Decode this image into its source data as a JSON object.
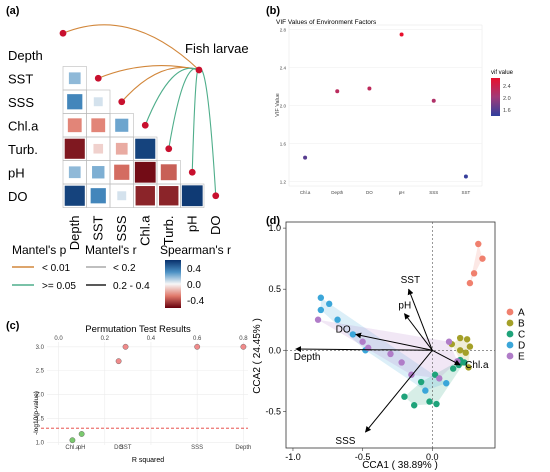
{
  "panel_labels": {
    "a": "(a)",
    "b": "(b)",
    "c": "(c)",
    "d": "(d)"
  },
  "chart_data": [
    {
      "type": "heatmap",
      "panel": "a",
      "variables": [
        "Depth",
        "SST",
        "SSS",
        "Chl.a",
        "Turb.",
        "pH",
        "DO"
      ],
      "fish_label": "Fish larvae",
      "cells": [
        {
          "row": 1,
          "col": 0,
          "r": 0.3
        },
        {
          "row": 2,
          "col": 0,
          "r": 0.55
        },
        {
          "row": 2,
          "col": 1,
          "r": 0.1
        },
        {
          "row": 3,
          "col": 0,
          "r": -0.45
        },
        {
          "row": 3,
          "col": 1,
          "r": -0.45
        },
        {
          "row": 3,
          "col": 2,
          "r": 0.4
        },
        {
          "row": 4,
          "col": 0,
          "r": -0.9
        },
        {
          "row": 4,
          "col": 1,
          "r": -0.15
        },
        {
          "row": 4,
          "col": 2,
          "r": -0.3
        },
        {
          "row": 4,
          "col": 3,
          "r": 0.9
        },
        {
          "row": 5,
          "col": 0,
          "r": 0.3
        },
        {
          "row": 5,
          "col": 1,
          "r": 0.35
        },
        {
          "row": 5,
          "col": 2,
          "r": -0.55
        },
        {
          "row": 5,
          "col": 3,
          "r": -0.95
        },
        {
          "row": 5,
          "col": 4,
          "r": -0.6
        },
        {
          "row": 6,
          "col": 0,
          "r": 0.9
        },
        {
          "row": 6,
          "col": 1,
          "r": 0.55
        },
        {
          "row": 6,
          "col": 2,
          "r": 0.1
        },
        {
          "row": 6,
          "col": 3,
          "r": -0.85
        },
        {
          "row": 6,
          "col": 4,
          "r": -0.85
        },
        {
          "row": 6,
          "col": 5,
          "r": 0.95
        }
      ],
      "mantel_links": [
        {
          "target": "Depth",
          "p": "< 0.01"
        },
        {
          "target": "SST",
          "p": "< 0.01"
        },
        {
          "target": "SSS",
          "p": "< 0.01"
        },
        {
          "target": "Chl.a",
          "p": ">= 0.05"
        },
        {
          "target": "Turb.",
          "p": ">= 0.05"
        },
        {
          "target": "pH",
          "p": ">= 0.05"
        },
        {
          "target": "DO",
          "p": ">= 0.05"
        }
      ],
      "legend": {
        "mantel_p_title": "Mantel's p",
        "mantel_p_items": [
          {
            "label": "< 0.01",
            "color": "#d2873b"
          },
          {
            "label": ">= 0.05",
            "color": "#4fae8b"
          }
        ],
        "mantel_r_title": "Mantel's r",
        "mantel_r_items": [
          {
            "label": "< 0.2"
          },
          {
            "label": "0.2 - 0.4"
          }
        ],
        "spearman_title": "Spearman's r",
        "spearman_ticks": [
          "0.4",
          "0.0",
          "-0.4"
        ]
      }
    },
    {
      "type": "scatter",
      "panel": "b",
      "title": "VIF Values of Environment Factors",
      "ylabel": "VIF Value",
      "categories": [
        "Chl.a",
        "Depth",
        "DO",
        "pH",
        "SSS",
        "SST"
      ],
      "values": [
        1.45,
        2.15,
        2.18,
        2.75,
        2.05,
        1.25
      ],
      "ylim": [
        1.15,
        2.85
      ],
      "yticks": [
        "1.2",
        "1.6",
        "2.0",
        "2.4",
        "2.8"
      ],
      "legend_title": "vif value",
      "legend_ticks": [
        "2.4",
        "2.0",
        "1.6"
      ]
    },
    {
      "type": "scatter",
      "panel": "c",
      "title": "Permutation Test Results",
      "xlabel": "R squared",
      "ylabel": "-log10(p-value)",
      "xticks": [
        "0.0",
        "0.2",
        "0.4",
        "0.6",
        "0.8"
      ],
      "yticks": [
        "1.0",
        "1.5",
        "2.0",
        "2.5",
        "3.0"
      ],
      "xlim": [
        -0.05,
        0.82
      ],
      "ylim": [
        0.95,
        3.1
      ],
      "threshold": 1.3,
      "points": [
        {
          "label": "Chl.a",
          "x": 0.06,
          "y": 1.05,
          "color": "#7bc96f"
        },
        {
          "label": "pH",
          "x": 0.1,
          "y": 1.18,
          "color": "#7bc96f"
        },
        {
          "label": "DO",
          "x": 0.26,
          "y": 2.7,
          "color": "#f08a8a"
        },
        {
          "label": "SST",
          "x": 0.29,
          "y": 3.0,
          "color": "#f08a8a"
        },
        {
          "label": "SSS",
          "x": 0.6,
          "y": 3.0,
          "color": "#f08a8a"
        },
        {
          "label": "Depth",
          "x": 0.8,
          "y": 3.0,
          "color": "#f08a8a"
        }
      ]
    },
    {
      "type": "scatter",
      "panel": "d",
      "xlabel": "CCA1 ( 38.89% )",
      "ylabel": "CCA2 ( 24.45% )",
      "xticks": [
        -1.0,
        -0.5,
        0.0
      ],
      "yticks": [
        -0.5,
        0.0,
        0.5,
        1.0
      ],
      "xlim": [
        -1.05,
        0.45
      ],
      "ylim": [
        -0.8,
        1.05
      ],
      "arrows": [
        {
          "label": "SST",
          "x": -0.17,
          "y": 0.5
        },
        {
          "label": "pH",
          "x": -0.2,
          "y": 0.3
        },
        {
          "label": "DO",
          "x": -0.55,
          "y": 0.13
        },
        {
          "label": "Depth",
          "x": -0.98,
          "y": 0.01
        },
        {
          "label": "Chl.a",
          "x": 0.2,
          "y": -0.12
        },
        {
          "label": "SSS",
          "x": -0.48,
          "y": -0.67
        }
      ],
      "legend": [
        "A",
        "B",
        "C",
        "D",
        "E"
      ],
      "colors": {
        "A": "#f0806e",
        "B": "#a4a028",
        "C": "#1fa37a",
        "D": "#3ba6d9",
        "E": "#b07cc8"
      },
      "points": [
        {
          "g": "A",
          "x": 0.33,
          "y": 0.87
        },
        {
          "g": "A",
          "x": 0.36,
          "y": 0.75
        },
        {
          "g": "A",
          "x": 0.3,
          "y": 0.63
        },
        {
          "g": "A",
          "x": 0.27,
          "y": 0.55
        },
        {
          "g": "B",
          "x": 0.2,
          "y": 0.1
        },
        {
          "g": "B",
          "x": 0.25,
          "y": 0.09
        },
        {
          "g": "B",
          "x": 0.14,
          "y": 0.05
        },
        {
          "g": "B",
          "x": 0.2,
          "y": 0.0
        },
        {
          "g": "B",
          "x": 0.24,
          "y": -0.02
        },
        {
          "g": "B",
          "x": 0.27,
          "y": 0.03
        },
        {
          "g": "B",
          "x": 0.21,
          "y": -0.1
        },
        {
          "g": "B",
          "x": 0.26,
          "y": -0.14
        },
        {
          "g": "C",
          "x": 0.15,
          "y": -0.15
        },
        {
          "g": "C",
          "x": 0.19,
          "y": -0.12
        },
        {
          "g": "C",
          "x": 0.23,
          "y": -0.1
        },
        {
          "g": "C",
          "x": 0.2,
          "y": -0.08
        },
        {
          "g": "C",
          "x": 0.02,
          "y": -0.2
        },
        {
          "g": "C",
          "x": -0.08,
          "y": -0.26
        },
        {
          "g": "C",
          "x": -0.13,
          "y": -0.45
        },
        {
          "g": "C",
          "x": -0.2,
          "y": -0.38
        },
        {
          "g": "C",
          "x": -0.02,
          "y": -0.42
        },
        {
          "g": "C",
          "x": 0.03,
          "y": -0.44
        },
        {
          "g": "D",
          "x": -0.8,
          "y": 0.43
        },
        {
          "g": "D",
          "x": -0.74,
          "y": 0.38
        },
        {
          "g": "D",
          "x": -0.8,
          "y": 0.33
        },
        {
          "g": "D",
          "x": -0.68,
          "y": 0.25
        },
        {
          "g": "D",
          "x": -0.57,
          "y": 0.13
        },
        {
          "g": "D",
          "x": -0.48,
          "y": 0.0
        },
        {
          "g": "D",
          "x": 0.1,
          "y": -0.27
        },
        {
          "g": "D",
          "x": -0.05,
          "y": -0.33
        },
        {
          "g": "E",
          "x": -0.82,
          "y": 0.25
        },
        {
          "g": "E",
          "x": -0.5,
          "y": 0.07
        },
        {
          "g": "E",
          "x": -0.46,
          "y": 0.02
        },
        {
          "g": "E",
          "x": -0.3,
          "y": -0.03
        },
        {
          "g": "E",
          "x": -0.22,
          "y": -0.1
        },
        {
          "g": "E",
          "x": 0.12,
          "y": 0.07
        },
        {
          "g": "E",
          "x": 0.18,
          "y": -0.09
        },
        {
          "g": "E",
          "x": 0.05,
          "y": -0.23
        },
        {
          "g": "E",
          "x": -0.15,
          "y": -0.2
        }
      ]
    }
  ]
}
